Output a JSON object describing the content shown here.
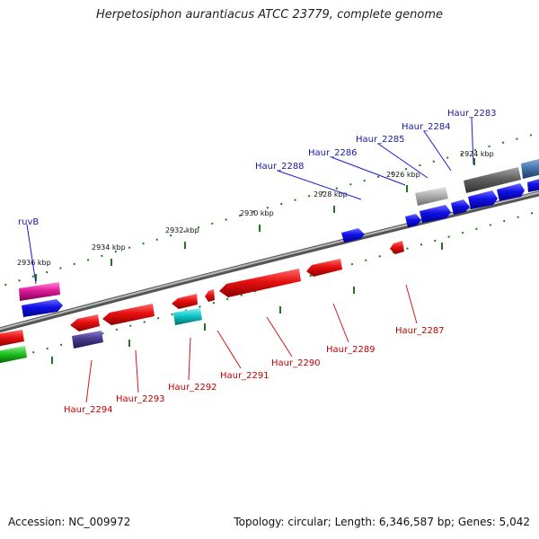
{
  "title": "Herpetosiphon aurantiacus ATCC 23779, complete genome",
  "footer": {
    "accession": "Accession: NC_009972",
    "summary": "Topology: circular; Length: 6,346,587 bp; Genes: 5,042"
  },
  "ticks": [
    "2924 kbp",
    "2926 kbp",
    "2928 kbp",
    "2930 kbp",
    "2932 kbp",
    "2934 kbp",
    "2936 kbp"
  ],
  "genes_top_labels": [
    "Haur_2283",
    "Haur_2284",
    "Haur_2285",
    "Haur_2286",
    "Haur_2288",
    "ruvB"
  ],
  "genes_bottom_labels": [
    "Haur_2287",
    "Haur_2289",
    "Haur_2290",
    "Haur_2291",
    "Haur_2292",
    "Haur_2293",
    "Haur_2294"
  ],
  "colors": {
    "forward": "#1010e0",
    "reverse": "#e01010",
    "backbone": "#808080",
    "tick": "#1a7a1a",
    "top_label": "#1a1aa0",
    "bottom_label": "#c00000"
  }
}
